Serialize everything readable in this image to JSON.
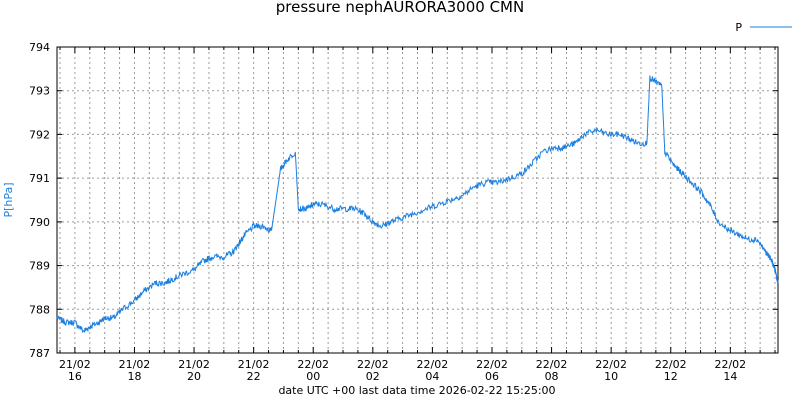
{
  "chart_data": {
    "type": "line",
    "title": "pressure nephAURORA3000 CMN",
    "ylabel": "P[hPa]",
    "xlabel": "date UTC +00 last data time 2026-02-22 15:25:00",
    "ylim": [
      787,
      794
    ],
    "yticks": [
      787,
      788,
      789,
      790,
      791,
      792,
      793,
      794
    ],
    "xlim_hours": [
      15.4,
      39.6
    ],
    "xticks": [
      {
        "hour": 16,
        "l1": "21/02",
        "l2": "16"
      },
      {
        "hour": 18,
        "l1": "21/02",
        "l2": "18"
      },
      {
        "hour": 20,
        "l1": "21/02",
        "l2": "20"
      },
      {
        "hour": 22,
        "l1": "21/02",
        "l2": "22"
      },
      {
        "hour": 24,
        "l1": "22/02",
        "l2": "00"
      },
      {
        "hour": 26,
        "l1": "22/02",
        "l2": "02"
      },
      {
        "hour": 28,
        "l1": "22/02",
        "l2": "04"
      },
      {
        "hour": 30,
        "l1": "22/02",
        "l2": "06"
      },
      {
        "hour": 32,
        "l1": "22/02",
        "l2": "08"
      },
      {
        "hour": 34,
        "l1": "22/02",
        "l2": "10"
      },
      {
        "hour": 36,
        "l1": "22/02",
        "l2": "12"
      },
      {
        "hour": 38,
        "l1": "22/02",
        "l2": "14"
      }
    ],
    "grid": true,
    "legend": "top-right",
    "series": [
      {
        "name": "P",
        "color": "#1a7fe0",
        "points": [
          [
            15.4,
            787.8
          ],
          [
            15.7,
            787.7
          ],
          [
            16.0,
            787.7
          ],
          [
            16.3,
            787.5
          ],
          [
            16.5,
            787.6
          ],
          [
            16.8,
            787.7
          ],
          [
            17.0,
            787.8
          ],
          [
            17.3,
            787.8
          ],
          [
            17.6,
            788.0
          ],
          [
            18.0,
            788.2
          ],
          [
            18.3,
            788.4
          ],
          [
            18.7,
            788.6
          ],
          [
            19.0,
            788.6
          ],
          [
            19.3,
            788.7
          ],
          [
            19.6,
            788.8
          ],
          [
            20.0,
            788.9
          ],
          [
            20.3,
            789.1
          ],
          [
            20.6,
            789.2
          ],
          [
            21.0,
            789.2
          ],
          [
            21.3,
            789.3
          ],
          [
            21.5,
            789.5
          ],
          [
            21.7,
            789.7
          ],
          [
            22.0,
            789.9
          ],
          [
            22.3,
            789.9
          ],
          [
            22.6,
            789.8
          ],
          [
            22.9,
            791.2
          ],
          [
            23.1,
            791.4
          ],
          [
            23.4,
            791.6
          ],
          [
            23.5,
            790.3
          ],
          [
            23.8,
            790.3
          ],
          [
            24.0,
            790.4
          ],
          [
            24.3,
            790.4
          ],
          [
            24.7,
            790.3
          ],
          [
            25.0,
            790.3
          ],
          [
            25.4,
            790.3
          ],
          [
            25.7,
            790.2
          ],
          [
            26.0,
            790.0
          ],
          [
            26.3,
            789.9
          ],
          [
            26.6,
            790.0
          ],
          [
            27.0,
            790.1
          ],
          [
            27.4,
            790.2
          ],
          [
            27.8,
            790.3
          ],
          [
            28.2,
            790.4
          ],
          [
            28.6,
            790.5
          ],
          [
            29.0,
            790.6
          ],
          [
            29.4,
            790.8
          ],
          [
            29.8,
            790.9
          ],
          [
            30.2,
            790.9
          ],
          [
            30.6,
            791.0
          ],
          [
            31.0,
            791.1
          ],
          [
            31.3,
            791.3
          ],
          [
            31.7,
            791.6
          ],
          [
            32.1,
            791.7
          ],
          [
            32.4,
            791.7
          ],
          [
            32.8,
            791.8
          ],
          [
            33.1,
            792.0
          ],
          [
            33.5,
            792.1
          ],
          [
            33.9,
            792.0
          ],
          [
            34.3,
            792.0
          ],
          [
            34.6,
            791.9
          ],
          [
            34.9,
            791.8
          ],
          [
            35.2,
            791.8
          ],
          [
            35.3,
            793.3
          ],
          [
            35.5,
            793.2
          ],
          [
            35.7,
            793.1
          ],
          [
            35.8,
            791.6
          ],
          [
            36.1,
            791.3
          ],
          [
            36.4,
            791.1
          ],
          [
            36.7,
            790.9
          ],
          [
            37.0,
            790.7
          ],
          [
            37.3,
            790.4
          ],
          [
            37.6,
            790.0
          ],
          [
            38.0,
            789.8
          ],
          [
            38.3,
            789.7
          ],
          [
            38.6,
            789.6
          ],
          [
            38.9,
            789.6
          ],
          [
            39.2,
            789.3
          ],
          [
            39.4,
            789.1
          ],
          [
            39.5,
            788.9
          ],
          [
            39.6,
            788.6
          ]
        ]
      }
    ]
  }
}
